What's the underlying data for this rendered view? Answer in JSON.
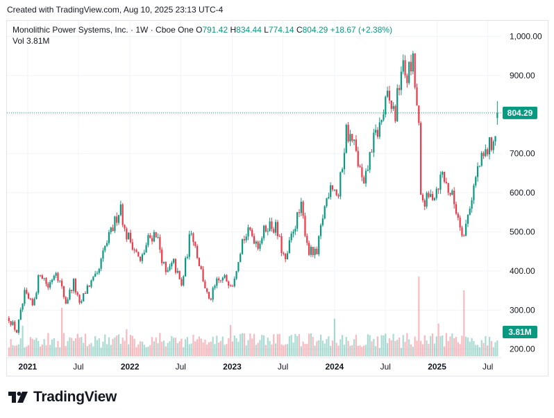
{
  "header": {
    "created_text": "Created with TradingView.com, Aug 10, 2025 23:13 UTC-4"
  },
  "legend": {
    "symbol_text": "Monolithic Power Systems, Inc. · 1W · Cboe One",
    "o_label": "O",
    "o_value": "791.42",
    "h_label": "H",
    "h_value": "834.44",
    "l_label": "L",
    "l_value": "774.14",
    "c_label": "C",
    "c_value": "804.29",
    "change": "+18.67 (+2.38%)",
    "vol_label": "Vol",
    "vol_value": "3.81M"
  },
  "footer": {
    "logo_text": "TradingView",
    "logo_icon": "tradingview-logo-icon"
  },
  "colors": {
    "up": "#089981",
    "down": "#f23645",
    "grid": "#f0f3fa",
    "axis_text": "#131722"
  },
  "chart_data": {
    "type": "candlestick",
    "x_tick_labels": [
      "2021",
      "Jul",
      "2022",
      "Jul",
      "2023",
      "Jul",
      "2024",
      "Jul",
      "2025",
      "Jul"
    ],
    "y_tick_labels": [
      "1,000.00",
      "900.00",
      "800.00",
      "700.00",
      "600.00",
      "500.00",
      "400.00",
      "300.00",
      "200.00"
    ],
    "ylim": [
      180,
      1040
    ],
    "last_price_label": "804.29",
    "last_price": 804.29,
    "volume_badge": "3.81M",
    "grid": true,
    "anchors": [
      [
        "2020-10-26",
        280
      ],
      [
        "2020-11-23",
        245
      ],
      [
        "2020-12-21",
        340
      ],
      [
        "2021-01-18",
        310
      ],
      [
        "2021-02-15",
        400
      ],
      [
        "2021-03-15",
        360
      ],
      [
        "2021-04-12",
        405
      ],
      [
        "2021-05-17",
        320
      ],
      [
        "2021-06-14",
        370
      ],
      [
        "2021-07-05",
        310
      ],
      [
        "2021-08-02",
        360
      ],
      [
        "2021-09-06",
        385
      ],
      [
        "2021-10-04",
        460
      ],
      [
        "2021-11-01",
        510
      ],
      [
        "2021-11-29",
        570
      ],
      [
        "2021-12-13",
        500
      ],
      [
        "2022-01-10",
        470
      ],
      [
        "2022-02-07",
        420
      ],
      [
        "2022-03-07",
        480
      ],
      [
        "2022-04-04",
        500
      ],
      [
        "2022-05-09",
        390
      ],
      [
        "2022-06-06",
        420
      ],
      [
        "2022-07-04",
        360
      ],
      [
        "2022-08-08",
        510
      ],
      [
        "2022-09-05",
        420
      ],
      [
        "2022-09-26",
        360
      ],
      [
        "2022-10-10",
        320
      ],
      [
        "2022-11-07",
        370
      ],
      [
        "2022-12-05",
        380
      ],
      [
        "2023-01-02",
        370
      ],
      [
        "2023-02-06",
        480
      ],
      [
        "2023-03-06",
        500
      ],
      [
        "2023-04-03",
        470
      ],
      [
        "2023-05-08",
        520
      ],
      [
        "2023-06-05",
        510
      ],
      [
        "2023-07-10",
        420
      ],
      [
        "2023-08-07",
        510
      ],
      [
        "2023-09-04",
        560
      ],
      [
        "2023-10-02",
        450
      ],
      [
        "2023-10-30",
        440
      ],
      [
        "2023-11-20",
        540
      ],
      [
        "2023-12-18",
        630
      ],
      [
        "2024-01-15",
        590
      ],
      [
        "2024-02-12",
        760
      ],
      [
        "2024-03-11",
        720
      ],
      [
        "2024-04-15",
        610
      ],
      [
        "2024-05-13",
        720
      ],
      [
        "2024-06-10",
        770
      ],
      [
        "2024-07-08",
        840
      ],
      [
        "2024-08-05",
        800
      ],
      [
        "2024-08-26",
        920
      ],
      [
        "2024-09-16",
        900
      ],
      [
        "2024-10-07",
        930
      ],
      [
        "2024-10-28",
        760
      ],
      [
        "2024-11-04",
        580
      ],
      [
        "2024-11-25",
        580
      ],
      [
        "2024-12-23",
        600
      ],
      [
        "2025-01-20",
        650
      ],
      [
        "2025-02-03",
        620
      ],
      [
        "2025-02-24",
        590
      ],
      [
        "2025-03-17",
        540
      ],
      [
        "2025-04-07",
        490
      ],
      [
        "2025-04-28",
        570
      ],
      [
        "2025-05-26",
        660
      ],
      [
        "2025-06-16",
        690
      ],
      [
        "2025-07-07",
        720
      ],
      [
        "2025-07-28",
        745
      ],
      [
        "2025-08-04",
        804.29
      ]
    ]
  }
}
